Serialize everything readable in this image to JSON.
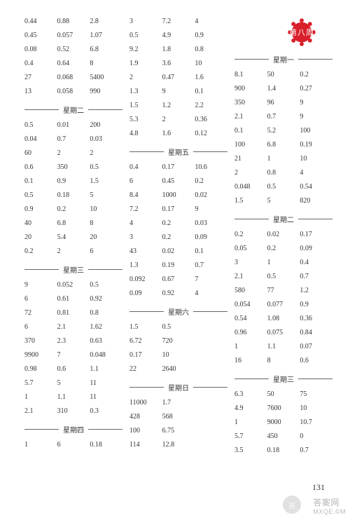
{
  "pageNumber": "131",
  "watermark": {
    "main": "答案网",
    "sub": "MXQE.©M"
  },
  "wmCircle": "答",
  "badgeLabel": "第八周",
  "col1": {
    "block1": [
      [
        "0.44",
        "0.88",
        "2.8"
      ],
      [
        "0.45",
        "0.057",
        "1.07"
      ],
      [
        "0.08",
        "0.52",
        "6.8"
      ],
      [
        "0.4",
        "0.64",
        "8"
      ],
      [
        "27",
        "0.068",
        "5400"
      ],
      [
        "13",
        "0.058",
        "990"
      ]
    ],
    "day2Label": "星期二",
    "block2": [
      [
        "0.5",
        "0.01",
        "200"
      ],
      [
        "0.04",
        "0.7",
        "0.03"
      ],
      [
        "60",
        "2",
        "2"
      ],
      [
        "0.6",
        "350",
        "0.5"
      ],
      [
        "0.1",
        "0.9",
        "1.5"
      ],
      [
        "0.5",
        "0.18",
        "5"
      ],
      [
        "0.9",
        "0.2",
        "10"
      ],
      [
        "40",
        "6.8",
        "8"
      ],
      [
        "20",
        "5.4",
        "20"
      ],
      [
        "0.2",
        "2",
        "6"
      ]
    ],
    "day3Label": "星期三",
    "block3": [
      [
        "9",
        "0.052",
        "0.5"
      ],
      [
        "6",
        "0.61",
        "0.92"
      ],
      [
        "72",
        "0.81",
        "0.8"
      ],
      [
        "6",
        "2.1",
        "1.62"
      ],
      [
        "370",
        "2.3",
        "0.63"
      ],
      [
        "9900",
        "7",
        "0.048"
      ],
      [
        "0.98",
        "0.6",
        "1.1"
      ],
      [
        "5.7",
        "5",
        "11"
      ],
      [
        "1",
        "1.1",
        "11"
      ],
      [
        "2.1",
        "310",
        "0.3"
      ]
    ],
    "day4Label": "星期四",
    "block4": [
      [
        "1",
        "6",
        "0.18"
      ]
    ]
  },
  "col2": {
    "block1": [
      [
        "3",
        "7.2",
        "4"
      ],
      [
        "0.5",
        "4.9",
        "0.9"
      ],
      [
        "9.2",
        "1.8",
        "0.8"
      ],
      [
        "1.9",
        "3.6",
        "10"
      ],
      [
        "2",
        "0.47",
        "1.6"
      ],
      [
        "1.3",
        "9",
        "0.1"
      ],
      [
        "1.5",
        "1.2",
        "2.2"
      ],
      [
        "5.3",
        "2",
        "0.36"
      ],
      [
        "4.8",
        "1.6",
        "0.12"
      ]
    ],
    "day5Label": "星期五",
    "block2": [
      [
        "0.4",
        "0.17",
        "10.6"
      ],
      [
        "6",
        "0.45",
        "0.2"
      ],
      [
        "8.4",
        "1000",
        "0.02"
      ],
      [
        "7.2",
        "0.17",
        "9"
      ],
      [
        "4",
        "0.2",
        "0.03"
      ],
      [
        "3",
        "0.2",
        "0.09"
      ],
      [
        "43",
        "0.02",
        "0.1"
      ],
      [
        "1.3",
        "0.19",
        "0.7"
      ],
      [
        "0.092",
        "0.67",
        "7"
      ],
      [
        "0.09",
        "0.92",
        "4"
      ]
    ],
    "day6Label": "星期六",
    "block3": [
      [
        "1.5",
        "0.5",
        ""
      ],
      [
        "6.72",
        "720",
        ""
      ],
      [
        "0.17",
        "10",
        ""
      ],
      [
        "22",
        "2640",
        ""
      ]
    ],
    "day7Label": "星期日",
    "block4": [
      [
        "11000",
        "1.7",
        ""
      ],
      [
        "428",
        "568",
        ""
      ],
      [
        "100",
        "6.75",
        ""
      ],
      [
        "114",
        "12.8",
        ""
      ]
    ]
  },
  "col3": {
    "day1Label": "星期一",
    "block1": [
      [
        "8.1",
        "50",
        "0.2"
      ],
      [
        "900",
        "1.4",
        "0.27"
      ],
      [
        "350",
        "96",
        "9"
      ],
      [
        "2.1",
        "0.7",
        "9"
      ],
      [
        "0.1",
        "5.2",
        "100"
      ],
      [
        "100",
        "6.8",
        "0.19"
      ],
      [
        "21",
        "1",
        "10"
      ],
      [
        "2",
        "0.8",
        "4"
      ],
      [
        "0.048",
        "0.5",
        "0.54"
      ],
      [
        "1.5",
        "5",
        "820"
      ]
    ],
    "day2Label": "星期二",
    "block2": [
      [
        "0.2",
        "0.02",
        "0.17"
      ],
      [
        "0.05",
        "0.2",
        "0.09"
      ],
      [
        "3",
        "1",
        "0.4"
      ],
      [
        "2.1",
        "0.5",
        "0.7"
      ],
      [
        "580",
        "77",
        "1.2"
      ],
      [
        "0.054",
        "0.077",
        "0.9"
      ],
      [
        "0.54",
        "1.08",
        "0.36"
      ],
      [
        "0.96",
        "0.075",
        "0.84"
      ],
      [
        "1",
        "1.1",
        "0.07"
      ],
      [
        "16",
        "8",
        "0.6"
      ]
    ],
    "day3Label": "星期三",
    "block3": [
      [
        "6.3",
        "50",
        "75"
      ],
      [
        "4.9",
        "7600",
        "10"
      ],
      [
        "1",
        "9000",
        "10.7"
      ],
      [
        "5.7",
        "450",
        "0"
      ],
      [
        "3.5",
        "0.18",
        "0.7"
      ]
    ]
  }
}
